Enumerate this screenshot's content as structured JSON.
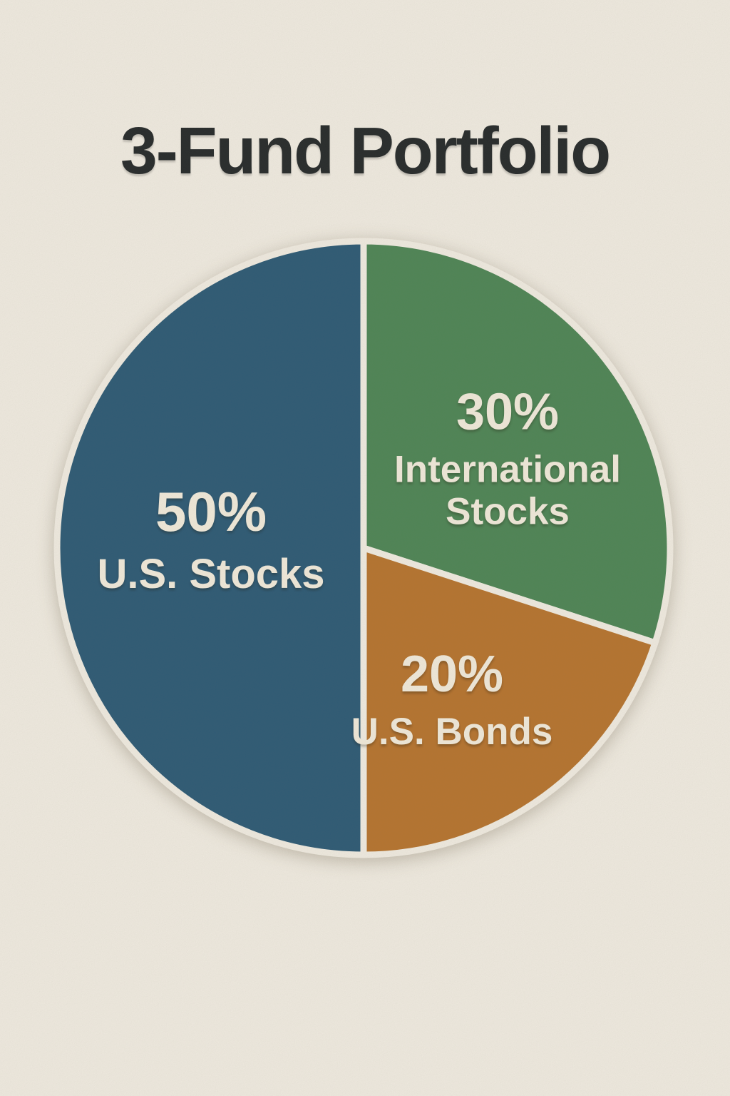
{
  "title": "3-Fund Portfolio",
  "colors": {
    "background": "#f2ede3",
    "title_text": "#262a2b",
    "label_text": "#f3ecdd",
    "slice_gap": "#f2ede3"
  },
  "chart_data": {
    "type": "pie",
    "title": "3-Fund Portfolio",
    "start_angle_deg": 0,
    "direction": "clockwise_from_top",
    "legend_position": "none",
    "labels_inside_slices": true,
    "slices": [
      {
        "label": "International Stocks",
        "pct_label": "30%",
        "value": 30,
        "color": "#4e8556"
      },
      {
        "label": "U.S. Bonds",
        "pct_label": "20%",
        "value": 20,
        "color": "#b7742f"
      },
      {
        "label": "U.S. Stocks",
        "pct_label": "50%",
        "value": 50,
        "color": "#2d5a76"
      }
    ]
  }
}
